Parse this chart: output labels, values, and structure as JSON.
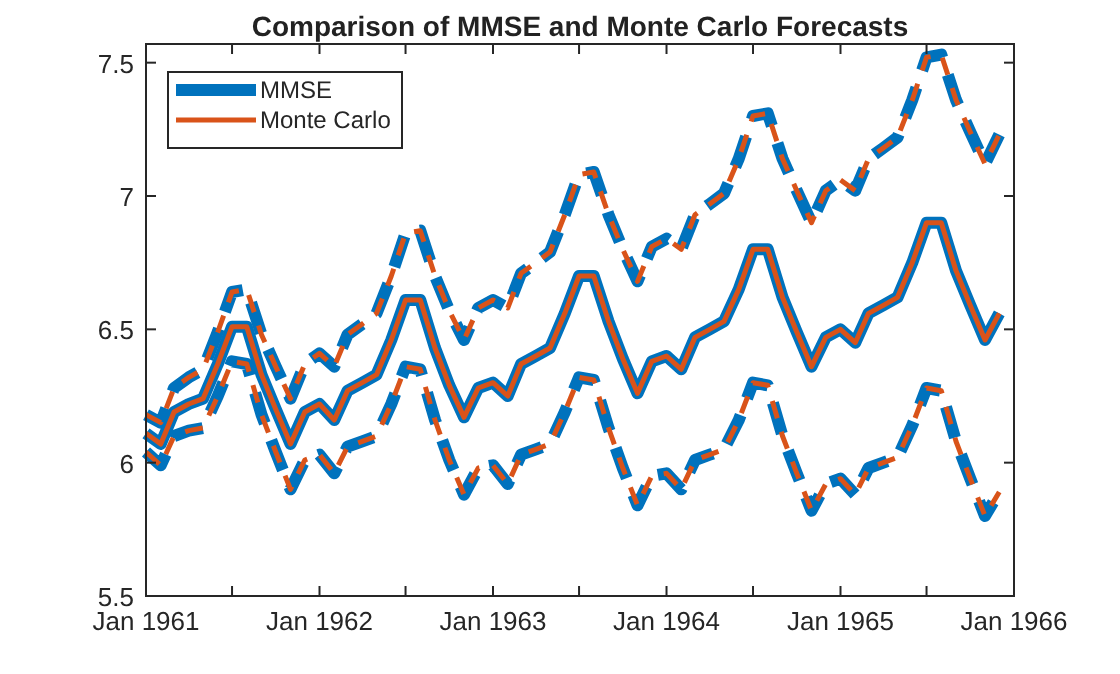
{
  "chart_data": {
    "type": "line",
    "title": "Comparison of MMSE and Monte Carlo Forecasts",
    "x": [
      "1961-01",
      "1961-02",
      "1961-03",
      "1961-04",
      "1961-05",
      "1961-06",
      "1961-07",
      "1961-08",
      "1961-09",
      "1961-10",
      "1961-11",
      "1961-12",
      "1962-01",
      "1962-02",
      "1962-03",
      "1962-04",
      "1962-05",
      "1962-06",
      "1962-07",
      "1962-08",
      "1962-09",
      "1962-10",
      "1962-11",
      "1962-12",
      "1963-01",
      "1963-02",
      "1963-03",
      "1963-04",
      "1963-05",
      "1963-06",
      "1963-07",
      "1963-08",
      "1963-09",
      "1963-10",
      "1963-11",
      "1963-12",
      "1964-01",
      "1964-02",
      "1964-03",
      "1964-04",
      "1964-05",
      "1964-06",
      "1964-07",
      "1964-08",
      "1964-09",
      "1964-10",
      "1964-11",
      "1964-12",
      "1965-01",
      "1965-02",
      "1965-03",
      "1965-04",
      "1965-05",
      "1965-06",
      "1965-07",
      "1965-08",
      "1965-09",
      "1965-10",
      "1965-11",
      "1965-12"
    ],
    "series": [
      {
        "name": "MMSE",
        "color": "#0072bd",
        "line_style": "solid",
        "values": [
          6.11,
          6.07,
          6.19,
          6.22,
          6.24,
          6.37,
          6.51,
          6.51,
          6.33,
          6.2,
          6.07,
          6.19,
          6.22,
          6.16,
          6.27,
          6.3,
          6.33,
          6.46,
          6.61,
          6.61,
          6.43,
          6.29,
          6.17,
          6.28,
          6.3,
          6.25,
          6.37,
          6.4,
          6.43,
          6.56,
          6.7,
          6.7,
          6.53,
          6.39,
          6.26,
          6.38,
          6.4,
          6.35,
          6.47,
          6.5,
          6.53,
          6.65,
          6.8,
          6.8,
          6.62,
          6.49,
          6.36,
          6.47,
          6.5,
          6.45,
          6.56,
          6.59,
          6.62,
          6.75,
          6.9,
          6.9,
          6.72,
          6.59,
          6.46,
          6.56
        ]
      },
      {
        "color": "#0072bd",
        "line_style": "dashed",
        "values": [
          6.04,
          5.99,
          6.1,
          6.12,
          6.13,
          6.25,
          6.38,
          6.37,
          6.18,
          6.04,
          5.9,
          6.01,
          6.03,
          5.96,
          6.06,
          6.08,
          6.1,
          6.22,
          6.36,
          6.35,
          6.16,
          6.01,
          5.88,
          5.98,
          5.99,
          5.92,
          6.03,
          6.05,
          6.07,
          6.19,
          6.32,
          6.31,
          6.13,
          5.98,
          5.84,
          5.95,
          5.96,
          5.9,
          6.01,
          6.03,
          6.05,
          6.16,
          6.3,
          6.29,
          6.1,
          5.96,
          5.82,
          5.92,
          5.94,
          5.88,
          5.98,
          6.0,
          6.02,
          6.14,
          6.28,
          6.27,
          6.08,
          5.94,
          5.8,
          5.89
        ]
      },
      {
        "color": "#0072bd",
        "line_style": "dashed",
        "values": [
          6.18,
          6.15,
          6.28,
          6.32,
          6.35,
          6.49,
          6.64,
          6.65,
          6.48,
          6.36,
          6.24,
          6.37,
          6.41,
          6.36,
          6.48,
          6.52,
          6.56,
          6.7,
          6.86,
          6.87,
          6.7,
          6.57,
          6.46,
          6.58,
          6.61,
          6.58,
          6.71,
          6.75,
          6.79,
          6.93,
          7.08,
          7.09,
          6.93,
          6.8,
          6.68,
          6.81,
          6.84,
          6.8,
          6.93,
          6.97,
          7.01,
          7.14,
          7.3,
          7.31,
          7.14,
          7.02,
          6.9,
          7.02,
          7.06,
          7.02,
          7.14,
          7.18,
          7.22,
          7.36,
          7.52,
          7.53,
          7.36,
          7.24,
          7.12,
          7.23
        ]
      },
      {
        "name": "Monte Carlo",
        "color": "#d95319",
        "line_style": "solid",
        "values": [
          6.11,
          6.07,
          6.19,
          6.22,
          6.24,
          6.37,
          6.51,
          6.51,
          6.33,
          6.2,
          6.07,
          6.19,
          6.22,
          6.16,
          6.27,
          6.3,
          6.33,
          6.46,
          6.61,
          6.61,
          6.43,
          6.29,
          6.17,
          6.28,
          6.3,
          6.25,
          6.37,
          6.4,
          6.43,
          6.56,
          6.7,
          6.7,
          6.53,
          6.39,
          6.26,
          6.38,
          6.4,
          6.35,
          6.47,
          6.5,
          6.53,
          6.65,
          6.8,
          6.8,
          6.62,
          6.49,
          6.36,
          6.47,
          6.5,
          6.45,
          6.56,
          6.59,
          6.62,
          6.75,
          6.9,
          6.9,
          6.72,
          6.59,
          6.46,
          6.56
        ]
      },
      {
        "color": "#d95319",
        "line_style": "dashed",
        "values": [
          6.04,
          5.99,
          6.1,
          6.12,
          6.13,
          6.25,
          6.38,
          6.37,
          6.18,
          6.04,
          5.9,
          6.01,
          6.03,
          5.96,
          6.06,
          6.08,
          6.1,
          6.22,
          6.36,
          6.35,
          6.16,
          6.01,
          5.88,
          5.98,
          5.99,
          5.92,
          6.03,
          6.05,
          6.07,
          6.19,
          6.32,
          6.31,
          6.13,
          5.98,
          5.84,
          5.95,
          5.96,
          5.9,
          6.01,
          6.03,
          6.05,
          6.16,
          6.3,
          6.29,
          6.1,
          5.96,
          5.82,
          5.92,
          5.94,
          5.88,
          5.98,
          6.0,
          6.02,
          6.14,
          6.28,
          6.27,
          6.08,
          5.94,
          5.8,
          5.89
        ]
      },
      {
        "color": "#d95319",
        "line_style": "dashed",
        "values": [
          6.18,
          6.15,
          6.28,
          6.32,
          6.35,
          6.49,
          6.64,
          6.65,
          6.48,
          6.36,
          6.24,
          6.37,
          6.41,
          6.36,
          6.48,
          6.52,
          6.56,
          6.7,
          6.86,
          6.87,
          6.7,
          6.57,
          6.46,
          6.58,
          6.61,
          6.58,
          6.71,
          6.75,
          6.79,
          6.93,
          7.08,
          7.09,
          6.93,
          6.8,
          6.68,
          6.81,
          6.84,
          6.8,
          6.93,
          6.97,
          7.01,
          7.14,
          7.3,
          7.31,
          7.14,
          7.02,
          6.9,
          7.02,
          7.06,
          7.02,
          7.14,
          7.18,
          7.22,
          7.36,
          7.52,
          7.53,
          7.36,
          7.24,
          7.12,
          7.23
        ]
      }
    ],
    "xlim": [
      "1961-01",
      "1966-01"
    ],
    "xticks": [
      {
        "value": "1961-01",
        "label": "Jan 1961"
      },
      {
        "value": "1961-07",
        "label": null
      },
      {
        "value": "1962-01",
        "label": "Jan 1962"
      },
      {
        "value": "1962-07",
        "label": null
      },
      {
        "value": "1963-01",
        "label": "Jan 1963"
      },
      {
        "value": "1963-07",
        "label": null
      },
      {
        "value": "1964-01",
        "label": "Jan 1964"
      },
      {
        "value": "1964-07",
        "label": null
      },
      {
        "value": "1965-01",
        "label": "Jan 1965"
      },
      {
        "value": "1965-07",
        "label": null
      },
      {
        "value": "1966-01",
        "label": "Jan 1966"
      }
    ],
    "ylim": [
      5.5,
      7.57
    ],
    "yticks": [
      5.5,
      6,
      {
        "value": 6.5,
        "label": "6.5"
      },
      7,
      7.5
    ],
    "legend": "top left"
  }
}
